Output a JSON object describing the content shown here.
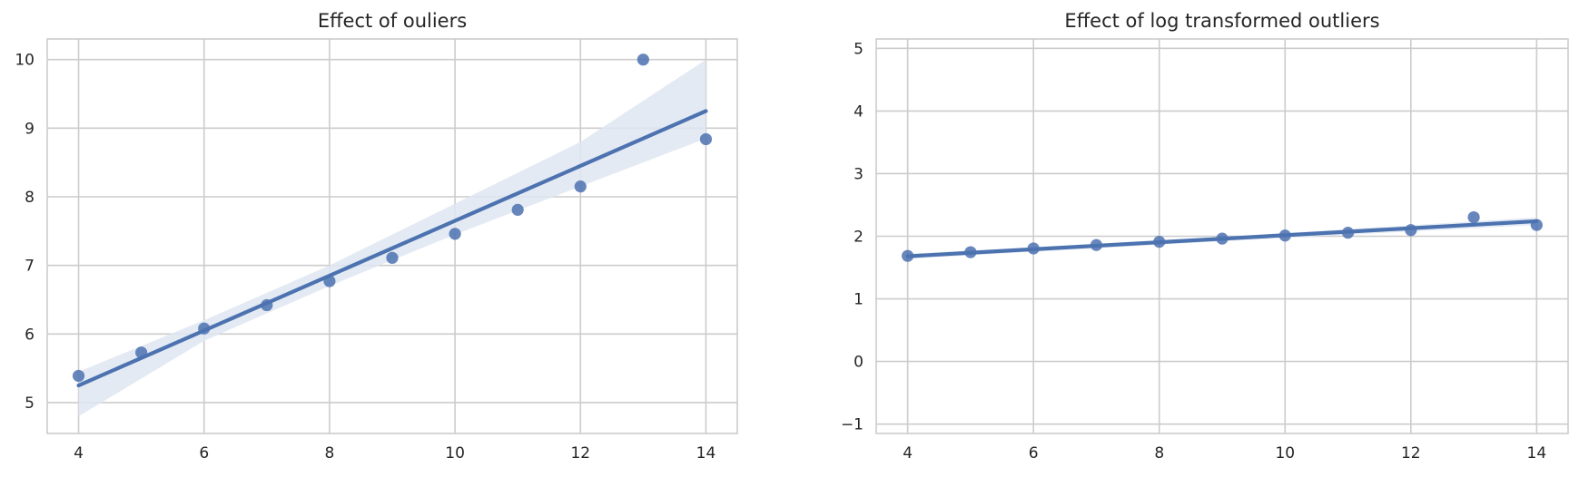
{
  "chart_data": [
    {
      "type": "scatter",
      "title": "Effect of ouliers",
      "xlabel": "",
      "ylabel": "",
      "xlim": [
        3.5,
        14.5
      ],
      "ylim": [
        4.55,
        10.3
      ],
      "xticks": [
        "4",
        "6",
        "8",
        "10",
        "12",
        "14"
      ],
      "yticks": [
        "5",
        "6",
        "7",
        "8",
        "9",
        "10"
      ],
      "grid": true,
      "x": [
        4,
        5,
        6,
        7,
        8,
        9,
        10,
        11,
        12,
        13,
        14
      ],
      "y": [
        5.39,
        5.73,
        6.08,
        6.42,
        6.77,
        7.11,
        7.46,
        7.81,
        8.15,
        10.0,
        8.84
      ],
      "regression_line": {
        "x": [
          4,
          14
        ],
        "y": [
          5.25,
          9.25
        ]
      },
      "confidence_band": {
        "x": [
          4,
          6,
          8,
          10,
          12,
          14
        ],
        "lower": [
          4.8,
          5.9,
          6.7,
          7.45,
          8.15,
          8.85
        ],
        "upper": [
          5.45,
          6.2,
          7.0,
          7.9,
          8.8,
          10.0
        ]
      },
      "color": "#4c72b0",
      "band_color": "#dfe6f1"
    },
    {
      "type": "scatter",
      "title": "Effect of log transformed outliers",
      "xlabel": "",
      "ylabel": "",
      "xlim": [
        3.5,
        14.5
      ],
      "ylim": [
        -1.15,
        5.15
      ],
      "xticks": [
        "4",
        "6",
        "8",
        "10",
        "12",
        "14"
      ],
      "yticks": [
        "−1",
        "0",
        "1",
        "2",
        "3",
        "4",
        "5"
      ],
      "grid": true,
      "x": [
        4,
        5,
        6,
        7,
        8,
        9,
        10,
        11,
        12,
        13,
        14
      ],
      "y": [
        1.686,
        1.746,
        1.805,
        1.859,
        1.911,
        1.962,
        2.011,
        2.056,
        2.098,
        2.303,
        2.179
      ],
      "regression_line": {
        "x": [
          4,
          14
        ],
        "y": [
          1.68,
          2.24
        ]
      },
      "confidence_band": {
        "x": [
          4,
          9,
          14
        ],
        "lower": [
          1.64,
          1.92,
          2.18
        ],
        "upper": [
          1.72,
          1.99,
          2.3
        ]
      },
      "color": "#4c72b0",
      "band_color": "#dfe6f1"
    }
  ]
}
